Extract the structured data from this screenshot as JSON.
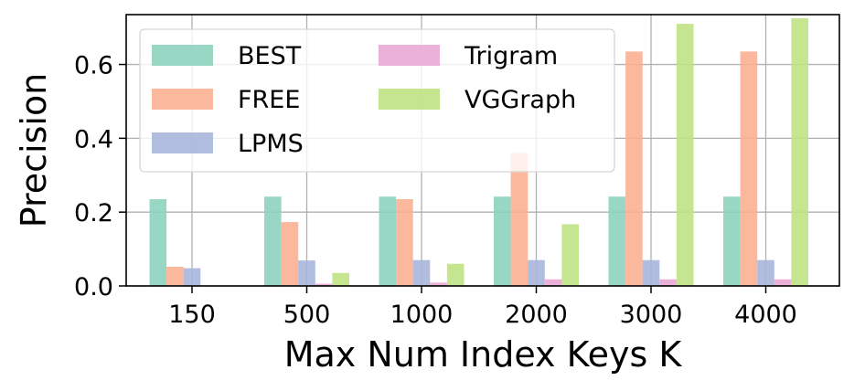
{
  "chart_data": {
    "type": "bar",
    "xlabel": "Max Num Index Keys K",
    "ylabel": "Precision",
    "categories": [
      "150",
      "500",
      "1000",
      "2000",
      "3000",
      "4000"
    ],
    "ylim": [
      0,
      0.735
    ],
    "yticks": [
      "0.0",
      "0.2",
      "0.4",
      "0.6"
    ],
    "grid": true,
    "legend_position": "top-left",
    "series": [
      {
        "name": "BEST",
        "color": "#8dd3bc",
        "values": [
          0.235,
          0.242,
          0.242,
          0.242,
          0.242,
          0.242
        ]
      },
      {
        "name": "FREE",
        "color": "#fbb092",
        "values": [
          0.052,
          0.173,
          0.235,
          0.36,
          0.635,
          0.635
        ]
      },
      {
        "name": "LPMS",
        "color": "#a9b6db",
        "values": [
          0.048,
          0.069,
          0.07,
          0.07,
          0.07,
          0.07
        ]
      },
      {
        "name": "Trigram",
        "color": "#eaa9d4",
        "values": [
          0.0,
          0.006,
          0.009,
          0.018,
          0.018,
          0.018
        ]
      },
      {
        "name": "VGGraph",
        "color": "#bfe284",
        "values": [
          0.0,
          0.035,
          0.06,
          0.167,
          0.71,
          0.725
        ]
      }
    ]
  }
}
